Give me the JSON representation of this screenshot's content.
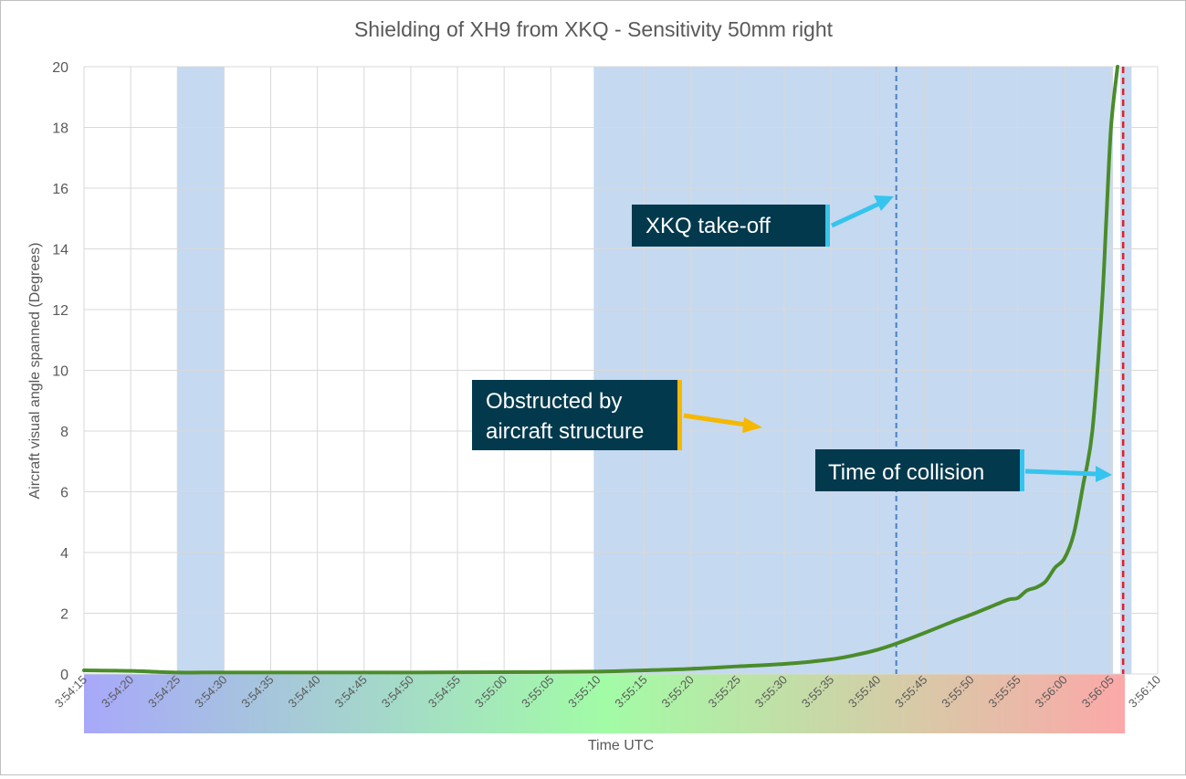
{
  "chart_data": {
    "type": "line",
    "title": "Shielding of XH9 from XKQ - Sensitivity 50mm right",
    "xlabel": "Time UTC",
    "ylabel": "Aircraft visual angle spanned (Degrees)",
    "xlim": [
      "3:54:15",
      "3:56:10"
    ],
    "ylim": [
      0,
      20
    ],
    "yticks": [
      0,
      2,
      4,
      6,
      8,
      10,
      12,
      14,
      16,
      18,
      20
    ],
    "xticks": [
      "3:54:15",
      "3:54:20",
      "3:54:25",
      "3:54:30",
      "3:54:35",
      "3:54:40",
      "3:54:45",
      "3:54:50",
      "3:54:55",
      "3:55:00",
      "3:55:05",
      "3:55:10",
      "3:55:15",
      "3:55:20",
      "3:55:25",
      "3:55:30",
      "3:55:35",
      "3:55:40",
      "3:55:45",
      "3:55:50",
      "3:55:55",
      "3:56:00",
      "3:56:05",
      "3:56:10"
    ],
    "grid": true,
    "legend": "none",
    "series": [
      {
        "color": "#4a8c2a",
        "x": [
          "3:54:15",
          "3:54:20",
          "3:54:25",
          "3:54:30",
          "3:54:40",
          "3:54:50",
          "3:55:00",
          "3:55:10",
          "3:55:15",
          "3:55:20",
          "3:55:25",
          "3:55:30",
          "3:55:35",
          "3:55:38",
          "3:55:40",
          "3:55:42",
          "3:55:45",
          "3:55:48",
          "3:55:50",
          "3:55:52",
          "3:55:54",
          "3:55:55",
          "3:55:56",
          "3:55:57",
          "3:55:58",
          "3:55:59",
          "3:56:00",
          "3:56:01",
          "3:56:02",
          "3:56:03",
          "3:56:04",
          "3:56:04.5",
          "3:56:05",
          "3:56:05.7"
        ],
        "y": [
          0.12,
          0.1,
          0.05,
          0.05,
          0.05,
          0.05,
          0.06,
          0.08,
          0.12,
          0.17,
          0.25,
          0.33,
          0.48,
          0.65,
          0.8,
          1.0,
          1.35,
          1.72,
          1.95,
          2.2,
          2.45,
          2.5,
          2.75,
          2.85,
          3.05,
          3.5,
          3.8,
          4.6,
          6.2,
          8.0,
          12.0,
          15.0,
          18.0,
          20.0
        ]
      }
    ],
    "shaded_regions": [
      {
        "start": "3:54:25",
        "end": "3:54:30",
        "color": "#c5d9f0"
      },
      {
        "start": "3:55:09.6",
        "end": "3:56:05.2",
        "color": "#c5d9f0"
      },
      {
        "start": "3:56:06",
        "end": "3:56:07.2",
        "color": "#c5d9f0"
      }
    ],
    "vertical_lines": [
      {
        "x": "3:55:42",
        "color": "#4a7fc8",
        "style": "dashed"
      },
      {
        "x": "3:56:06.3",
        "color": "#e0202a",
        "style": "dashed"
      }
    ],
    "time_gradient": [
      "#a8a8fa",
      "#a2fca6",
      "#fca8a8"
    ],
    "annotations": [
      {
        "text": "XKQ take-off",
        "accent": "#35c4ee"
      },
      {
        "text": "Obstructed by aircraft structure",
        "lines": [
          "Obstructed by",
          "aircraft structure"
        ],
        "accent": "#f5b800"
      },
      {
        "text": "Time of collision",
        "accent": "#35c4ee"
      }
    ]
  },
  "colors": {
    "callout_fill": "#03394d",
    "grid": "#d9d9d9",
    "axis_text": "#595959"
  }
}
